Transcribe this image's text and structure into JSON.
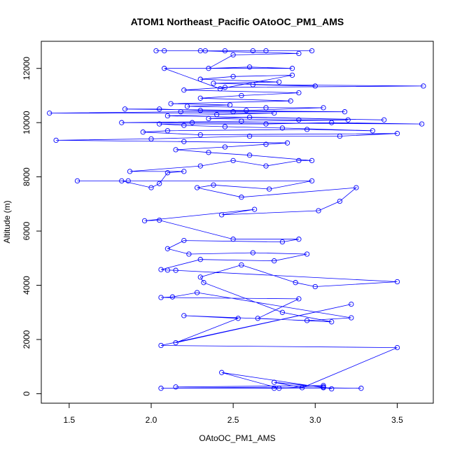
{
  "chart_data": {
    "type": "scatter",
    "title": "ATOM1 Northeast_Pacific OAtoOC_PM1_AMS",
    "xlabel": "OAtoOC_PM1_AMS",
    "ylabel": "Altitude (m)",
    "xlim": [
      1.33,
      3.72
    ],
    "ylim": [
      -350,
      13000
    ],
    "x_ticks": [
      1.5,
      2.0,
      2.5,
      3.0,
      3.5
    ],
    "x_tick_labels": [
      "1.5",
      "2.0",
      "2.5",
      "3.0",
      "3.5"
    ],
    "y_ticks": [
      0,
      2000,
      4000,
      6000,
      8000,
      10000,
      12000
    ],
    "y_tick_labels": [
      "0",
      "2000",
      "4000",
      "6000",
      "8000",
      "10000",
      "12000"
    ],
    "grid": false,
    "legend": "none",
    "colors": {
      "series": "#0000ff",
      "axes": "#000000"
    },
    "series": [
      {
        "marker": "open-circle",
        "connected": true,
        "points": [
          [
            2.06,
            200
          ],
          [
            2.75,
            200
          ],
          [
            3.05,
            220
          ],
          [
            3.28,
            200
          ],
          [
            2.15,
            250
          ],
          [
            3.05,
            300
          ],
          [
            2.78,
            200
          ],
          [
            2.43,
            780
          ],
          [
            3.1,
            180
          ],
          [
            3.05,
            250
          ],
          [
            2.75,
            420
          ],
          [
            2.92,
            220
          ],
          [
            3.5,
            1700
          ],
          [
            2.06,
            1780
          ],
          [
            3.22,
            3300
          ],
          [
            2.15,
            1880
          ],
          [
            2.53,
            2780
          ],
          [
            2.2,
            2880
          ],
          [
            2.95,
            2700
          ],
          [
            3.22,
            2800
          ],
          [
            2.28,
            3730
          ],
          [
            2.13,
            3570
          ],
          [
            2.06,
            3550
          ],
          [
            2.9,
            3500
          ],
          [
            2.65,
            2780
          ],
          [
            3.1,
            2650
          ],
          [
            2.8,
            3000
          ],
          [
            2.32,
            4100
          ],
          [
            2.3,
            4300
          ],
          [
            2.55,
            4750
          ],
          [
            2.88,
            4100
          ],
          [
            3.0,
            3950
          ],
          [
            3.5,
            4130
          ],
          [
            2.15,
            4550
          ],
          [
            2.1,
            4560
          ],
          [
            2.06,
            4580
          ],
          [
            2.3,
            4950
          ],
          [
            2.75,
            4900
          ],
          [
            2.95,
            5150
          ],
          [
            2.62,
            5200
          ],
          [
            2.23,
            5150
          ],
          [
            2.1,
            5350
          ],
          [
            2.2,
            5650
          ],
          [
            2.8,
            5600
          ],
          [
            2.9,
            5700
          ],
          [
            2.5,
            5700
          ],
          [
            2.05,
            6400
          ],
          [
            1.96,
            6380
          ],
          [
            2.63,
            6800
          ],
          [
            2.43,
            6600
          ],
          [
            3.02,
            6750
          ],
          [
            3.15,
            7100
          ],
          [
            3.25,
            7600
          ],
          [
            2.55,
            7250
          ],
          [
            2.28,
            7600
          ],
          [
            2.38,
            7700
          ],
          [
            2.72,
            7550
          ],
          [
            2.98,
            7850
          ],
          [
            1.86,
            7850
          ],
          [
            1.55,
            7850
          ],
          [
            1.82,
            7850
          ],
          [
            2.0,
            7600
          ],
          [
            2.05,
            7750
          ],
          [
            2.1,
            8150
          ],
          [
            2.2,
            8200
          ],
          [
            1.87,
            8200
          ],
          [
            2.3,
            8400
          ],
          [
            2.5,
            8600
          ],
          [
            2.7,
            8400
          ],
          [
            2.9,
            8600
          ],
          [
            2.98,
            8600
          ],
          [
            2.6,
            8800
          ],
          [
            2.35,
            8900
          ],
          [
            2.15,
            9000
          ],
          [
            2.45,
            9100
          ],
          [
            2.7,
            9200
          ],
          [
            2.83,
            9250
          ],
          [
            2.2,
            9300
          ],
          [
            1.42,
            9350
          ],
          [
            2.0,
            9400
          ],
          [
            2.6,
            9500
          ],
          [
            3.15,
            9500
          ],
          [
            3.5,
            9600
          ],
          [
            2.3,
            9550
          ],
          [
            1.95,
            9650
          ],
          [
            2.1,
            9700
          ],
          [
            2.95,
            9750
          ],
          [
            3.35,
            9700
          ],
          [
            2.8,
            9800
          ],
          [
            2.45,
            9850
          ],
          [
            2.2,
            9900
          ],
          [
            2.05,
            9950
          ],
          [
            2.7,
            9950
          ],
          [
            3.1,
            10000
          ],
          [
            3.65,
            9950
          ],
          [
            2.25,
            10000
          ],
          [
            1.82,
            10000
          ],
          [
            2.55,
            10050
          ],
          [
            3.2,
            10100
          ],
          [
            2.9,
            10100
          ],
          [
            2.35,
            10150
          ],
          [
            2.6,
            10200
          ],
          [
            3.42,
            10100
          ],
          [
            2.1,
            10250
          ],
          [
            2.4,
            10300
          ],
          [
            2.75,
            10350
          ],
          [
            1.38,
            10350
          ],
          [
            2.18,
            10400
          ],
          [
            2.5,
            10400
          ],
          [
            3.18,
            10400
          ],
          [
            2.3,
            10450
          ],
          [
            2.05,
            10500
          ],
          [
            1.84,
            10500
          ],
          [
            2.58,
            10450
          ],
          [
            3.05,
            10550
          ],
          [
            2.7,
            10550
          ],
          [
            2.22,
            10600
          ],
          [
            2.48,
            10650
          ],
          [
            2.12,
            10700
          ],
          [
            2.85,
            10800
          ],
          [
            2.3,
            10900
          ],
          [
            2.55,
            11000
          ],
          [
            2.9,
            11100
          ],
          [
            2.2,
            11200
          ],
          [
            2.45,
            11300
          ],
          [
            3.66,
            11350
          ],
          [
            2.62,
            11400
          ],
          [
            3.0,
            11350
          ],
          [
            2.38,
            11450
          ],
          [
            2.78,
            11500
          ],
          [
            2.3,
            11600
          ],
          [
            2.5,
            11700
          ],
          [
            2.86,
            11750
          ],
          [
            2.42,
            11250
          ],
          [
            2.08,
            12000
          ],
          [
            2.86,
            12000
          ],
          [
            2.6,
            12050
          ],
          [
            2.35,
            12000
          ],
          [
            2.5,
            12500
          ],
          [
            2.9,
            12550
          ],
          [
            2.3,
            12650
          ],
          [
            2.03,
            12650
          ],
          [
            2.33,
            12650
          ],
          [
            2.62,
            12650
          ],
          [
            2.98,
            12650
          ],
          [
            2.08,
            12650
          ],
          [
            2.45,
            12650
          ],
          [
            2.7,
            12650
          ]
        ]
      }
    ]
  }
}
